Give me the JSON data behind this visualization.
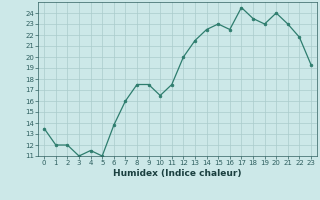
{
  "x": [
    0,
    1,
    2,
    3,
    4,
    5,
    6,
    7,
    8,
    9,
    10,
    11,
    12,
    13,
    14,
    15,
    16,
    17,
    18,
    19,
    20,
    21,
    22,
    23
  ],
  "y": [
    13.5,
    12.0,
    12.0,
    11.0,
    11.5,
    11.0,
    13.8,
    16.0,
    17.5,
    17.5,
    16.5,
    17.5,
    20.0,
    21.5,
    22.5,
    23.0,
    22.5,
    24.5,
    23.5,
    23.0,
    24.0,
    23.0,
    21.8,
    19.3
  ],
  "xlabel": "Humidex (Indice chaleur)",
  "ylim": [
    11,
    25
  ],
  "xlim": [
    -0.5,
    23.5
  ],
  "yticks": [
    11,
    12,
    13,
    14,
    15,
    16,
    17,
    18,
    19,
    20,
    21,
    22,
    23,
    24
  ],
  "xticks": [
    0,
    1,
    2,
    3,
    4,
    5,
    6,
    7,
    8,
    9,
    10,
    11,
    12,
    13,
    14,
    15,
    16,
    17,
    18,
    19,
    20,
    21,
    22,
    23
  ],
  "line_color": "#2e7d6e",
  "marker_color": "#2e7d6e",
  "bg_color": "#cce8e8",
  "grid_color": "#aacccc",
  "tick_label_color": "#2e5f5f",
  "xlabel_color": "#1a3f3f",
  "bottom_bar_color": "#3a8080"
}
